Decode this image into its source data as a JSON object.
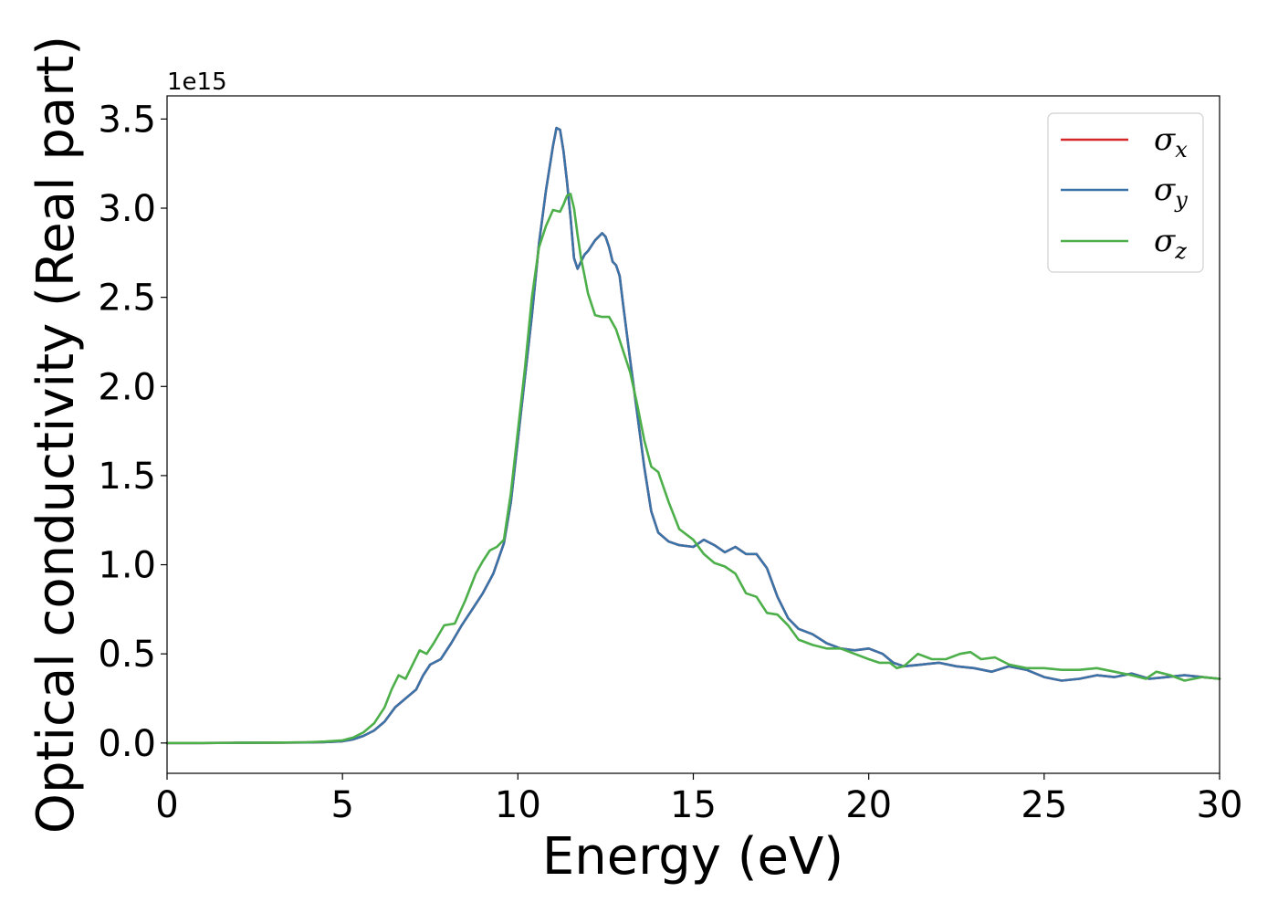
{
  "chart_data": {
    "type": "line",
    "xlabel": "Energy (eV)",
    "ylabel": "Optical conductivity (Real part)",
    "y_offset_label": "1e15",
    "xlim": [
      0,
      30
    ],
    "ylim": [
      -0.17,
      3.63
    ],
    "y_scale_factor": 1000000000000000.0,
    "grid": false,
    "legend_position": "top-right",
    "x_ticks": [
      0,
      5,
      10,
      15,
      20,
      25,
      30
    ],
    "x_tick_labels": [
      "0",
      "5",
      "10",
      "15",
      "20",
      "25",
      "30"
    ],
    "y_ticks": [
      0.0,
      0.5,
      1.0,
      1.5,
      2.0,
      2.5,
      3.0,
      3.5
    ],
    "y_tick_labels": [
      "0.0",
      "0.5",
      "1.0",
      "1.5",
      "2.0",
      "2.5",
      "3.0",
      "3.5"
    ],
    "series": [
      {
        "name": "σx",
        "legend_symbol": "σ",
        "legend_subscript": "x",
        "color": "#d62728",
        "x": [
          0,
          1,
          2,
          3,
          4,
          4.5,
          5,
          5.3,
          5.6,
          5.9,
          6.2,
          6.5,
          6.8,
          7.1,
          7.3,
          7.5,
          7.8,
          8.1,
          8.4,
          8.7,
          9.0,
          9.3,
          9.6,
          9.8,
          10.0,
          10.2,
          10.4,
          10.6,
          10.8,
          11.0,
          11.1,
          11.2,
          11.3,
          11.4,
          11.5,
          11.6,
          11.7,
          11.8,
          11.9,
          12.0,
          12.2,
          12.4,
          12.5,
          12.6,
          12.7,
          12.8,
          12.9,
          13.0,
          13.2,
          13.4,
          13.6,
          13.8,
          14.0,
          14.3,
          14.6,
          15.0,
          15.3,
          15.6,
          15.9,
          16.2,
          16.5,
          16.8,
          17.1,
          17.4,
          17.7,
          18.0,
          18.4,
          18.8,
          19.2,
          19.6,
          20.0,
          20.4,
          20.7,
          21.0,
          21.5,
          22.0,
          22.5,
          23.0,
          23.5,
          24.0,
          24.5,
          25.0,
          25.5,
          26.0,
          26.5,
          27.0,
          27.5,
          28.0,
          28.5,
          29.0,
          29.5,
          30.0
        ],
        "y": [
          0,
          0,
          0.001,
          0.002,
          0.003,
          0.005,
          0.01,
          0.02,
          0.04,
          0.07,
          0.12,
          0.2,
          0.25,
          0.3,
          0.38,
          0.44,
          0.47,
          0.56,
          0.66,
          0.75,
          0.84,
          0.95,
          1.12,
          1.35,
          1.7,
          2.05,
          2.4,
          2.8,
          3.1,
          3.35,
          3.45,
          3.44,
          3.32,
          3.15,
          2.95,
          2.72,
          2.66,
          2.7,
          2.74,
          2.76,
          2.82,
          2.86,
          2.84,
          2.78,
          2.7,
          2.68,
          2.62,
          2.46,
          2.15,
          1.85,
          1.55,
          1.3,
          1.18,
          1.13,
          1.11,
          1.1,
          1.14,
          1.11,
          1.07,
          1.1,
          1.06,
          1.06,
          0.98,
          0.82,
          0.7,
          0.64,
          0.61,
          0.56,
          0.53,
          0.52,
          0.53,
          0.5,
          0.45,
          0.43,
          0.44,
          0.45,
          0.43,
          0.42,
          0.4,
          0.43,
          0.41,
          0.37,
          0.35,
          0.36,
          0.38,
          0.37,
          0.39,
          0.36,
          0.37,
          0.38,
          0.37,
          0.36
        ]
      },
      {
        "name": "σy",
        "legend_symbol": "σ",
        "legend_subscript": "y",
        "color": "#3a73a8",
        "x": [
          0,
          1,
          2,
          3,
          4,
          4.5,
          5,
          5.3,
          5.6,
          5.9,
          6.2,
          6.5,
          6.8,
          7.1,
          7.3,
          7.5,
          7.8,
          8.1,
          8.4,
          8.7,
          9.0,
          9.3,
          9.6,
          9.8,
          10.0,
          10.2,
          10.4,
          10.6,
          10.8,
          11.0,
          11.1,
          11.2,
          11.3,
          11.4,
          11.5,
          11.6,
          11.7,
          11.8,
          11.9,
          12.0,
          12.2,
          12.4,
          12.5,
          12.6,
          12.7,
          12.8,
          12.9,
          13.0,
          13.2,
          13.4,
          13.6,
          13.8,
          14.0,
          14.3,
          14.6,
          15.0,
          15.3,
          15.6,
          15.9,
          16.2,
          16.5,
          16.8,
          17.1,
          17.4,
          17.7,
          18.0,
          18.4,
          18.8,
          19.2,
          19.6,
          20.0,
          20.4,
          20.7,
          21.0,
          21.5,
          22.0,
          22.5,
          23.0,
          23.5,
          24.0,
          24.5,
          25.0,
          25.5,
          26.0,
          26.5,
          27.0,
          27.5,
          28.0,
          28.5,
          29.0,
          29.5,
          30.0
        ],
        "y": [
          0,
          0,
          0.001,
          0.002,
          0.003,
          0.005,
          0.01,
          0.02,
          0.04,
          0.07,
          0.12,
          0.2,
          0.25,
          0.3,
          0.38,
          0.44,
          0.47,
          0.56,
          0.66,
          0.75,
          0.84,
          0.95,
          1.12,
          1.35,
          1.7,
          2.05,
          2.4,
          2.8,
          3.1,
          3.35,
          3.45,
          3.44,
          3.32,
          3.15,
          2.95,
          2.72,
          2.66,
          2.7,
          2.74,
          2.76,
          2.82,
          2.86,
          2.84,
          2.78,
          2.7,
          2.68,
          2.62,
          2.46,
          2.15,
          1.85,
          1.55,
          1.3,
          1.18,
          1.13,
          1.11,
          1.1,
          1.14,
          1.11,
          1.07,
          1.1,
          1.06,
          1.06,
          0.98,
          0.82,
          0.7,
          0.64,
          0.61,
          0.56,
          0.53,
          0.52,
          0.53,
          0.5,
          0.45,
          0.43,
          0.44,
          0.45,
          0.43,
          0.42,
          0.4,
          0.43,
          0.41,
          0.37,
          0.35,
          0.36,
          0.38,
          0.37,
          0.39,
          0.36,
          0.37,
          0.38,
          0.37,
          0.36
        ]
      },
      {
        "name": "σz",
        "legend_symbol": "σ",
        "legend_subscript": "z",
        "color": "#4daf4a",
        "x": [
          0,
          1,
          2,
          3,
          4,
          4.5,
          5,
          5.3,
          5.6,
          5.9,
          6.2,
          6.4,
          6.6,
          6.8,
          7.0,
          7.2,
          7.4,
          7.6,
          7.9,
          8.2,
          8.5,
          8.8,
          9.0,
          9.2,
          9.4,
          9.6,
          9.8,
          10.0,
          10.2,
          10.4,
          10.6,
          10.8,
          11.0,
          11.2,
          11.3,
          11.4,
          11.5,
          11.6,
          11.7,
          11.8,
          11.9,
          12.0,
          12.2,
          12.4,
          12.6,
          12.8,
          13.0,
          13.2,
          13.4,
          13.6,
          13.8,
          14.0,
          14.3,
          14.6,
          15.0,
          15.3,
          15.6,
          15.9,
          16.2,
          16.5,
          16.8,
          17.1,
          17.4,
          17.7,
          18.0,
          18.4,
          18.8,
          19.2,
          19.6,
          20.0,
          20.3,
          20.6,
          20.8,
          21.0,
          21.4,
          21.8,
          22.2,
          22.6,
          22.9,
          23.2,
          23.6,
          24.0,
          24.5,
          25.0,
          25.5,
          26.0,
          26.5,
          27.0,
          27.5,
          27.9,
          28.2,
          28.6,
          29.0,
          29.5,
          30.0
        ],
        "y": [
          0,
          0,
          0.001,
          0.002,
          0.004,
          0.008,
          0.015,
          0.03,
          0.06,
          0.11,
          0.2,
          0.3,
          0.38,
          0.36,
          0.44,
          0.52,
          0.5,
          0.56,
          0.66,
          0.67,
          0.8,
          0.95,
          1.02,
          1.08,
          1.1,
          1.14,
          1.4,
          1.75,
          2.1,
          2.5,
          2.78,
          2.9,
          2.99,
          2.98,
          3.02,
          3.07,
          3.08,
          3.0,
          2.85,
          2.72,
          2.62,
          2.52,
          2.4,
          2.39,
          2.39,
          2.32,
          2.2,
          2.08,
          1.9,
          1.7,
          1.55,
          1.52,
          1.35,
          1.2,
          1.14,
          1.06,
          1.01,
          0.99,
          0.95,
          0.84,
          0.82,
          0.73,
          0.72,
          0.66,
          0.58,
          0.55,
          0.53,
          0.53,
          0.5,
          0.47,
          0.45,
          0.45,
          0.42,
          0.43,
          0.5,
          0.47,
          0.47,
          0.5,
          0.51,
          0.47,
          0.48,
          0.44,
          0.42,
          0.42,
          0.41,
          0.41,
          0.42,
          0.4,
          0.38,
          0.36,
          0.4,
          0.38,
          0.35,
          0.37,
          0.36
        ]
      }
    ]
  }
}
